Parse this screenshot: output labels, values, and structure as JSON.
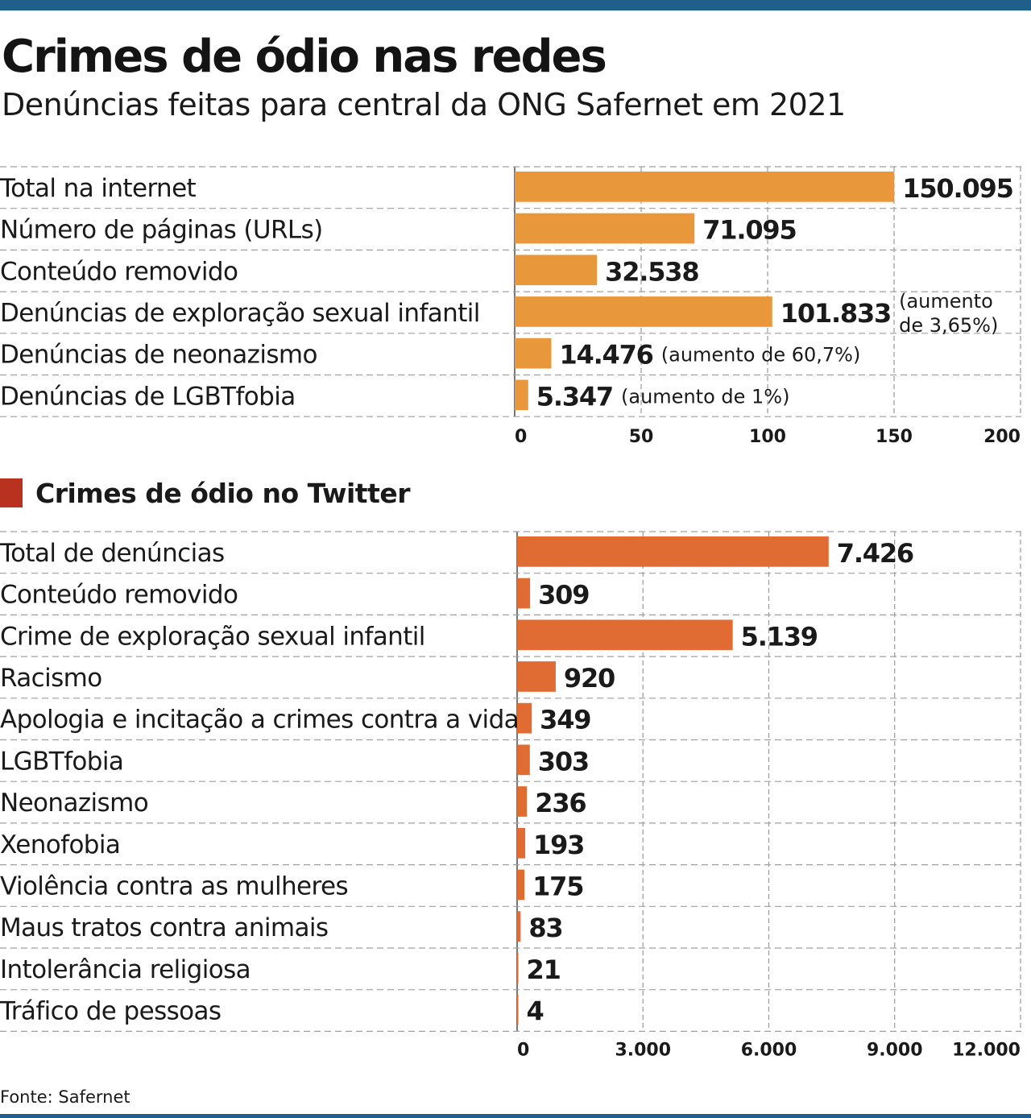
{
  "header": {
    "title": "Crimes de ódio nas redes",
    "subtitle": "Denúncias feitas para central da ONG Safernet em 2021"
  },
  "section2": {
    "title": "Crimes de ódio no Twitter"
  },
  "footer": {
    "source": "Fonte: Safernet"
  },
  "colors": {
    "accent": "#1f5f8b",
    "bar_internet": "#e8973a",
    "bar_twitter": "#e06b33",
    "marker": "#b8321f"
  },
  "chart_data": [
    {
      "type": "bar",
      "orientation": "horizontal",
      "categories": [
        "Total na internet",
        "Número de páginas (URLs)",
        "Conteúdo removido",
        "Denúncias de exploração sexual infantil",
        "Denúncias de neonazismo",
        "Denúncias de LGBTfobia"
      ],
      "values": [
        150095,
        71095,
        32538,
        101833,
        14476,
        5347
      ],
      "value_labels": [
        "150.095",
        "71.095",
        "32.538",
        "101.833",
        "14.476",
        "5.347"
      ],
      "annotations": [
        "",
        "",
        "",
        "(aumento|de 3,65%)",
        "(aumento de 60,7%)",
        "(aumento de 1%)"
      ],
      "xlim": [
        0,
        200000
      ],
      "ticks": [
        0,
        50000,
        100000,
        150000,
        200000
      ],
      "tick_labels": [
        "0",
        "50",
        "100",
        "150",
        "200"
      ],
      "grid": true
    },
    {
      "type": "bar",
      "orientation": "horizontal",
      "categories": [
        "Total de denúncias",
        "Conteúdo removido",
        "Crime de exploração sexual infantil",
        "Racismo",
        "Apologia e incitação a crimes contra a vida",
        "LGBTfobia",
        "Neonazismo",
        "Xenofobia",
        "Violência contra as mulheres",
        "Maus tratos contra animais",
        "Intolerância religiosa",
        "Tráfico de pessoas"
      ],
      "values": [
        7426,
        309,
        5139,
        920,
        349,
        303,
        236,
        193,
        175,
        83,
        21,
        4
      ],
      "value_labels": [
        "7.426",
        "309",
        "5.139",
        "920",
        "349",
        "303",
        "236",
        "193",
        "175",
        "83",
        "21",
        "4"
      ],
      "xlim": [
        0,
        12000
      ],
      "ticks": [
        0,
        3000,
        6000,
        9000,
        12000
      ],
      "tick_labels": [
        "0",
        "3.000",
        "6.000",
        "9.000",
        "12.000"
      ],
      "grid": true
    }
  ]
}
